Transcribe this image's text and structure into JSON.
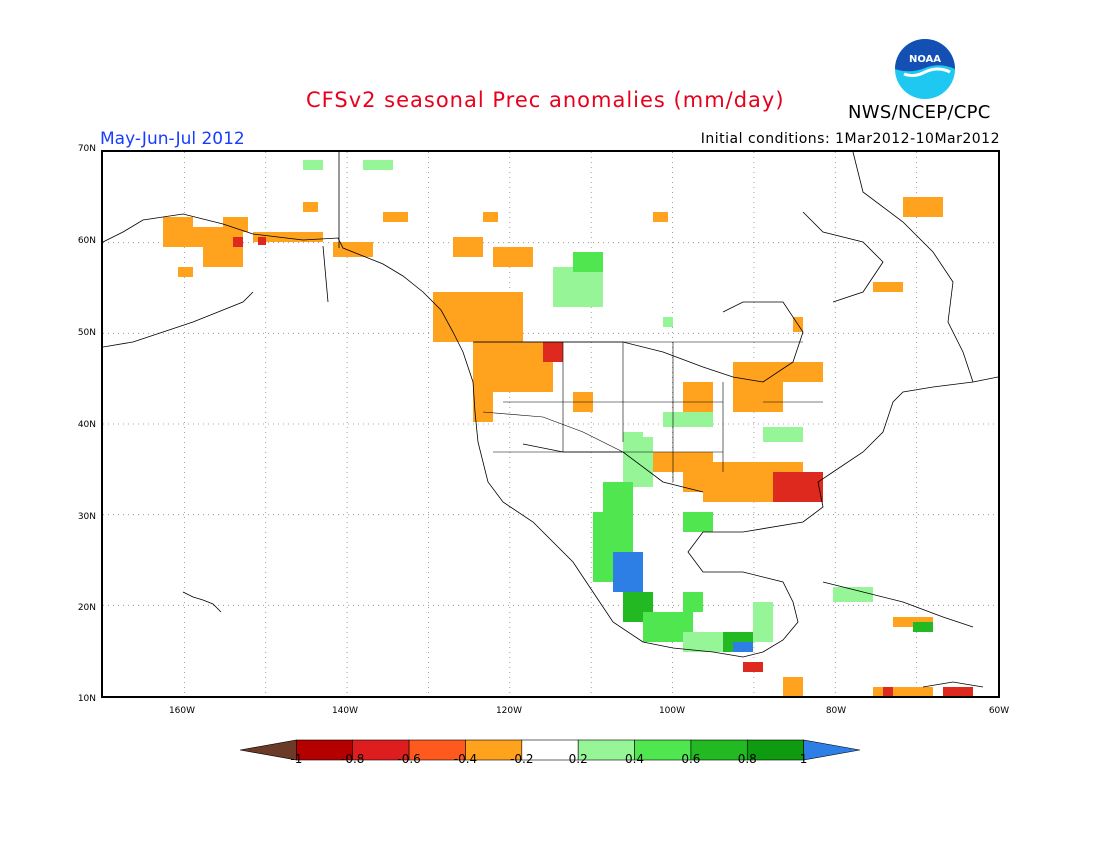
{
  "header": {
    "title": "CFSv2 seasonal Prec anomalies (mm/day)",
    "season": "May-Jun-Jul 2012",
    "initial_conditions": "Initial conditions: 1Mar2012-10Mar2012",
    "agency": "NWS/NCEP/CPC",
    "logo_text": "NOAA"
  },
  "map": {
    "projection": "lat-lon",
    "lon_range": [
      -170,
      -60
    ],
    "lat_range": [
      10,
      70
    ],
    "grid": "dotted",
    "lat_labels": [
      "70N",
      "60N",
      "50N",
      "40N",
      "30N",
      "20N",
      "10N"
    ],
    "lon_labels": [
      "160W",
      "140W",
      "120W",
      "100W",
      "80W",
      "60W"
    ]
  },
  "colorbar": {
    "ticks": [
      "-1",
      "-0.8",
      "-0.6",
      "-0.4",
      "-0.2",
      "0.2",
      "0.4",
      "0.6",
      "0.8",
      "1"
    ],
    "colors": [
      "#6b3b27",
      "#b50000",
      "#de1e1e",
      "#ff5a1e",
      "#ffa21e",
      "#ffffff",
      "#96f596",
      "#50e650",
      "#22b922",
      "#0f9b0f",
      "#2d7fe6"
    ]
  },
  "colors": {
    "dry_strong": "#de2a1e",
    "dry": "#ffa21e",
    "wet": "#96f596",
    "wet_mod": "#50e650",
    "wet_strong": "#22b922",
    "wet_extreme": "#2d7fe6"
  }
}
